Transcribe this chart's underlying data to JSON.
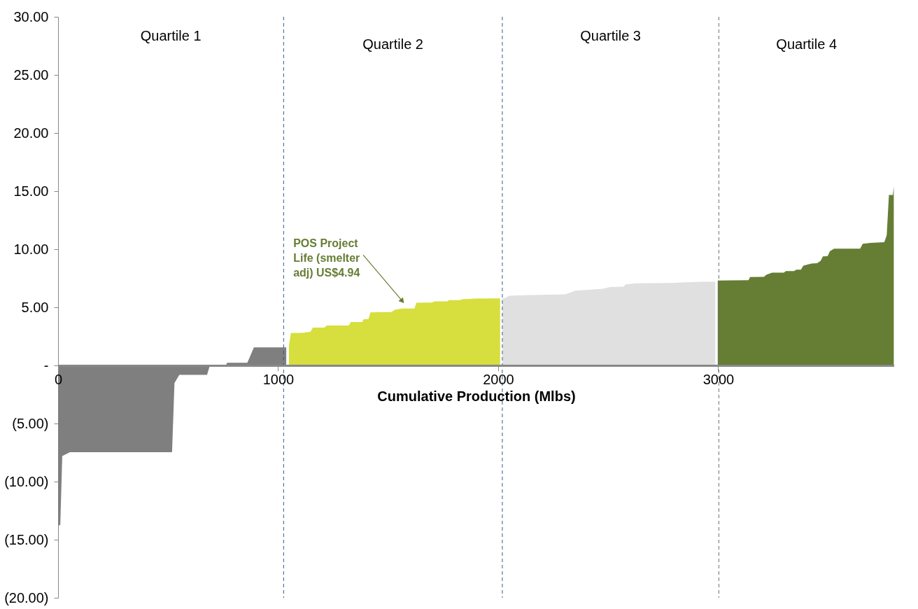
{
  "chart_data": {
    "type": "area",
    "xlabel": "Cumulative Production (Mlbs)",
    "xlim": [
      0,
      3800
    ],
    "xticks": [
      0,
      1000,
      2000,
      3000
    ],
    "ylim": [
      -20,
      30
    ],
    "yticks": [
      {
        "value": 30,
        "label": "30.00"
      },
      {
        "value": 25,
        "label": "25.00"
      },
      {
        "value": 20,
        "label": "20.00"
      },
      {
        "value": 15,
        "label": "15.00"
      },
      {
        "value": 10,
        "label": "10.00"
      },
      {
        "value": 5,
        "label": "5.00"
      },
      {
        "value": 0,
        "label": "-"
      },
      {
        "value": -5,
        "label": "(5.00)"
      },
      {
        "value": -10,
        "label": "(10.00)"
      },
      {
        "value": -15,
        "label": "(15.00)"
      },
      {
        "value": -20,
        "label": "(20.00)"
      }
    ],
    "grid": false,
    "series": [
      {
        "color": "#7f7f7f",
        "x": [
          0,
          10,
          19,
          54,
          518,
          529,
          551,
          677,
          690,
          763,
          768,
          860,
          890,
          1037
        ],
        "values": [
          -13.75,
          -13.75,
          -7.8,
          -7.47,
          -7.47,
          -1.52,
          -0.82,
          -0.82,
          0,
          0,
          0.22,
          0.22,
          1.55,
          1.55
        ]
      },
      {
        "color": "#d6df3d",
        "x": [
          1049,
          1058,
          1110,
          1147,
          1158,
          1210,
          1221,
          1321,
          1331,
          1382,
          1389,
          1410,
          1420,
          1515,
          1531,
          1563,
          1620,
          1628,
          1699,
          1710,
          1768,
          1778,
          1826,
          1836,
          1899,
          2009
        ],
        "values": [
          1.68,
          2.78,
          2.8,
          2.89,
          3.25,
          3.25,
          3.43,
          3.43,
          3.73,
          3.73,
          3.97,
          3.97,
          4.57,
          4.6,
          4.79,
          4.89,
          4.89,
          5.39,
          5.4,
          5.51,
          5.51,
          5.61,
          5.62,
          5.69,
          5.75,
          5.77
        ]
      },
      {
        "color": "#e0e0e0",
        "x": [
          2020,
          2030,
          2050,
          2150,
          2304,
          2351,
          2477,
          2509,
          2572,
          2577,
          2625,
          2782,
          2919,
          2987
        ],
        "values": [
          5.79,
          5.79,
          5.99,
          6.05,
          6.11,
          6.43,
          6.6,
          6.75,
          6.78,
          6.96,
          7.06,
          7.1,
          7.2,
          7.2
        ]
      },
      {
        "color": "#667d34",
        "x": [
          2998,
          3138,
          3145,
          3208,
          3219,
          3245,
          3298,
          3308,
          3345,
          3355,
          3376,
          3387,
          3424,
          3450,
          3466,
          3476,
          3497,
          3508,
          3527,
          3645,
          3657,
          3692,
          3755,
          3766,
          3776,
          3794,
          3798
        ],
        "values": [
          7.31,
          7.33,
          7.6,
          7.62,
          7.8,
          7.98,
          7.98,
          8.12,
          8.12,
          8.24,
          8.24,
          8.58,
          8.76,
          8.8,
          9.0,
          9.38,
          9.4,
          9.84,
          10.04,
          10.04,
          10.46,
          10.54,
          10.6,
          11.2,
          14.67,
          14.67,
          15.4
        ]
      }
    ],
    "ref_lines": [
      {
        "axis": "x",
        "value": 1025,
        "color": "#2e5b8c",
        "line_style": "dashed"
      },
      {
        "axis": "x",
        "value": 2019,
        "color": "#2e5b8c",
        "line_style": "dashed"
      },
      {
        "axis": "x",
        "value": 3003,
        "color": "#6d6d6d",
        "line_style": "dashed"
      }
    ],
    "annotations": [
      "Quartile 1",
      "Quartile 2",
      "Quartile 3",
      "Quartile 4",
      {
        "text": "POS Project Life (smelter adj) US$4.94",
        "x": 1562,
        "y": 5.59
      }
    ]
  }
}
